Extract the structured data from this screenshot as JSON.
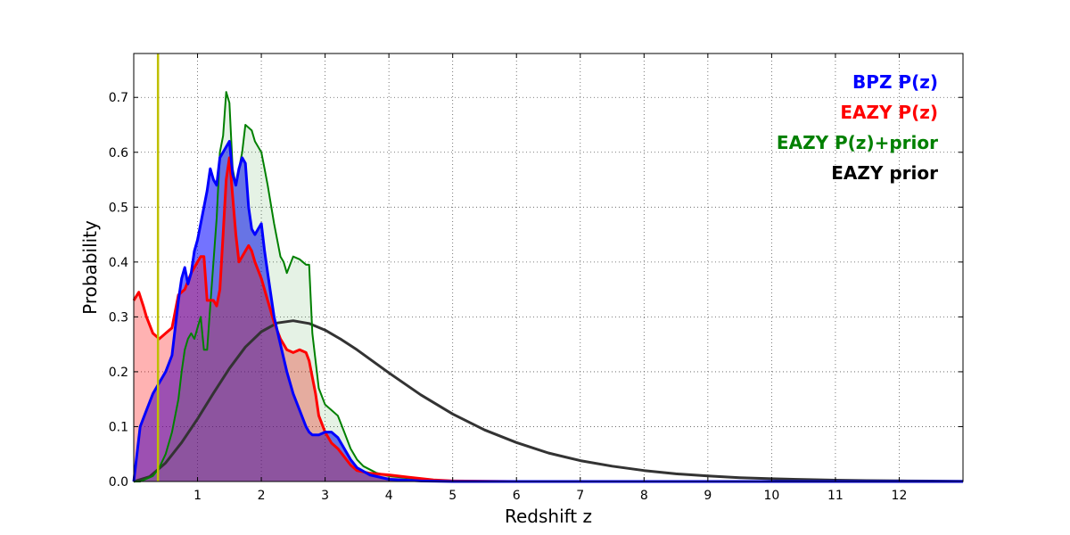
{
  "chart_data": {
    "type": "area",
    "title": "",
    "xlabel": "Redshift z",
    "ylabel": "Probability",
    "xlim": [
      0,
      13
    ],
    "ylim": [
      0,
      0.78
    ],
    "xticks": [
      1,
      2,
      3,
      4,
      5,
      6,
      7,
      8,
      9,
      10,
      11,
      12
    ],
    "yticks": [
      0.0,
      0.1,
      0.2,
      0.3,
      0.4,
      0.5,
      0.6,
      0.7
    ],
    "grid": true,
    "legend_position": "top-right",
    "marker_line": {
      "x": 0.38,
      "color": "#bfbf00"
    },
    "series": [
      {
        "name": "BPZ P(z)",
        "color": "#0000ff",
        "fill": "#0000ff",
        "fill_opacity": 0.55,
        "x": [
          0.0,
          0.05,
          0.1,
          0.2,
          0.3,
          0.4,
          0.5,
          0.6,
          0.65,
          0.7,
          0.75,
          0.8,
          0.85,
          0.9,
          0.95,
          1.0,
          1.05,
          1.1,
          1.15,
          1.2,
          1.25,
          1.3,
          1.35,
          1.4,
          1.45,
          1.5,
          1.55,
          1.6,
          1.65,
          1.7,
          1.75,
          1.8,
          1.85,
          1.9,
          1.95,
          2.0,
          2.05,
          2.1,
          2.2,
          2.3,
          2.4,
          2.5,
          2.6,
          2.7,
          2.75,
          2.8,
          2.9,
          3.0,
          3.1,
          3.2,
          3.3,
          3.4,
          3.5,
          3.7,
          4.0,
          4.5,
          5.0,
          6.0,
          8.0,
          10.0,
          12.0,
          13.0
        ],
        "y": [
          0.0,
          0.05,
          0.1,
          0.13,
          0.16,
          0.18,
          0.2,
          0.23,
          0.28,
          0.33,
          0.37,
          0.39,
          0.36,
          0.38,
          0.42,
          0.44,
          0.47,
          0.5,
          0.53,
          0.57,
          0.55,
          0.54,
          0.59,
          0.6,
          0.61,
          0.62,
          0.56,
          0.54,
          0.57,
          0.59,
          0.58,
          0.5,
          0.46,
          0.45,
          0.46,
          0.47,
          0.42,
          0.38,
          0.3,
          0.25,
          0.2,
          0.16,
          0.13,
          0.1,
          0.09,
          0.085,
          0.085,
          0.09,
          0.09,
          0.08,
          0.06,
          0.04,
          0.025,
          0.012,
          0.004,
          0.001,
          0.0,
          0.0,
          0.0,
          0.0,
          0.0,
          0.0
        ]
      },
      {
        "name": "EAZY P(z)",
        "color": "#ff0000",
        "fill": "#ff0000",
        "fill_opacity": 0.3,
        "x": [
          0.0,
          0.08,
          0.15,
          0.2,
          0.3,
          0.4,
          0.5,
          0.6,
          0.7,
          0.8,
          0.9,
          1.0,
          1.05,
          1.1,
          1.15,
          1.2,
          1.25,
          1.3,
          1.35,
          1.4,
          1.45,
          1.5,
          1.55,
          1.6,
          1.65,
          1.7,
          1.75,
          1.8,
          1.85,
          1.9,
          2.0,
          2.1,
          2.2,
          2.3,
          2.4,
          2.5,
          2.6,
          2.7,
          2.75,
          2.8,
          2.85,
          2.9,
          3.0,
          3.1,
          3.2,
          3.3,
          3.4,
          3.5,
          3.7,
          4.0,
          4.3,
          4.7,
          5.0,
          6.0,
          8.0,
          10.0,
          12.0,
          13.0
        ],
        "y": [
          0.33,
          0.345,
          0.32,
          0.3,
          0.27,
          0.26,
          0.27,
          0.28,
          0.34,
          0.35,
          0.38,
          0.4,
          0.41,
          0.41,
          0.33,
          0.33,
          0.33,
          0.32,
          0.35,
          0.45,
          0.55,
          0.59,
          0.52,
          0.45,
          0.4,
          0.41,
          0.42,
          0.43,
          0.42,
          0.4,
          0.37,
          0.33,
          0.29,
          0.26,
          0.24,
          0.235,
          0.24,
          0.235,
          0.22,
          0.19,
          0.16,
          0.12,
          0.09,
          0.07,
          0.06,
          0.045,
          0.03,
          0.02,
          0.015,
          0.012,
          0.008,
          0.003,
          0.001,
          0.0,
          0.0,
          0.0,
          0.0,
          0.0
        ]
      },
      {
        "name": "EAZY P(z)+prior",
        "color": "#008000",
        "fill": "#008000",
        "fill_opacity": 0.1,
        "x": [
          0.0,
          0.1,
          0.2,
          0.3,
          0.4,
          0.5,
          0.6,
          0.7,
          0.75,
          0.8,
          0.85,
          0.9,
          0.95,
          1.0,
          1.05,
          1.1,
          1.15,
          1.2,
          1.25,
          1.3,
          1.35,
          1.4,
          1.45,
          1.5,
          1.55,
          1.6,
          1.65,
          1.7,
          1.75,
          1.8,
          1.85,
          1.9,
          1.95,
          2.0,
          2.05,
          2.1,
          2.2,
          2.3,
          2.35,
          2.4,
          2.5,
          2.6,
          2.65,
          2.7,
          2.75,
          2.8,
          2.9,
          3.0,
          3.1,
          3.2,
          3.3,
          3.4,
          3.5,
          3.6,
          3.8,
          4.0,
          4.3,
          4.7,
          5.0,
          6.0,
          8.0,
          10.0,
          12.0,
          13.0
        ],
        "y": [
          0.0,
          0.0,
          0.005,
          0.01,
          0.025,
          0.05,
          0.09,
          0.15,
          0.2,
          0.24,
          0.26,
          0.27,
          0.26,
          0.28,
          0.3,
          0.24,
          0.24,
          0.32,
          0.4,
          0.48,
          0.6,
          0.63,
          0.71,
          0.69,
          0.57,
          0.54,
          0.57,
          0.6,
          0.65,
          0.645,
          0.64,
          0.62,
          0.61,
          0.6,
          0.57,
          0.54,
          0.47,
          0.41,
          0.4,
          0.38,
          0.41,
          0.405,
          0.4,
          0.395,
          0.395,
          0.27,
          0.17,
          0.14,
          0.13,
          0.12,
          0.09,
          0.06,
          0.04,
          0.028,
          0.016,
          0.01,
          0.006,
          0.002,
          0.0,
          0.0,
          0.0,
          0.0,
          0.0,
          0.0
        ]
      },
      {
        "name": "EAZY prior",
        "color": "#333333",
        "fill": "none",
        "fill_opacity": 0,
        "x": [
          0.0,
          0.25,
          0.5,
          0.75,
          1.0,
          1.25,
          1.5,
          1.75,
          2.0,
          2.25,
          2.5,
          2.75,
          3.0,
          3.25,
          3.5,
          4.0,
          4.5,
          5.0,
          5.5,
          6.0,
          6.5,
          7.0,
          7.5,
          8.0,
          8.5,
          9.0,
          9.5,
          10.0,
          10.5,
          11.0,
          11.5,
          12.0,
          12.5,
          13.0
        ],
        "y": [
          0.0,
          0.009,
          0.034,
          0.071,
          0.114,
          0.161,
          0.206,
          0.245,
          0.273,
          0.289,
          0.293,
          0.288,
          0.276,
          0.259,
          0.24,
          0.198,
          0.158,
          0.123,
          0.094,
          0.071,
          0.052,
          0.038,
          0.028,
          0.02,
          0.014,
          0.01,
          0.007,
          0.005,
          0.0035,
          0.0024,
          0.0017,
          0.0012,
          0.0008,
          0.0005
        ]
      }
    ]
  }
}
